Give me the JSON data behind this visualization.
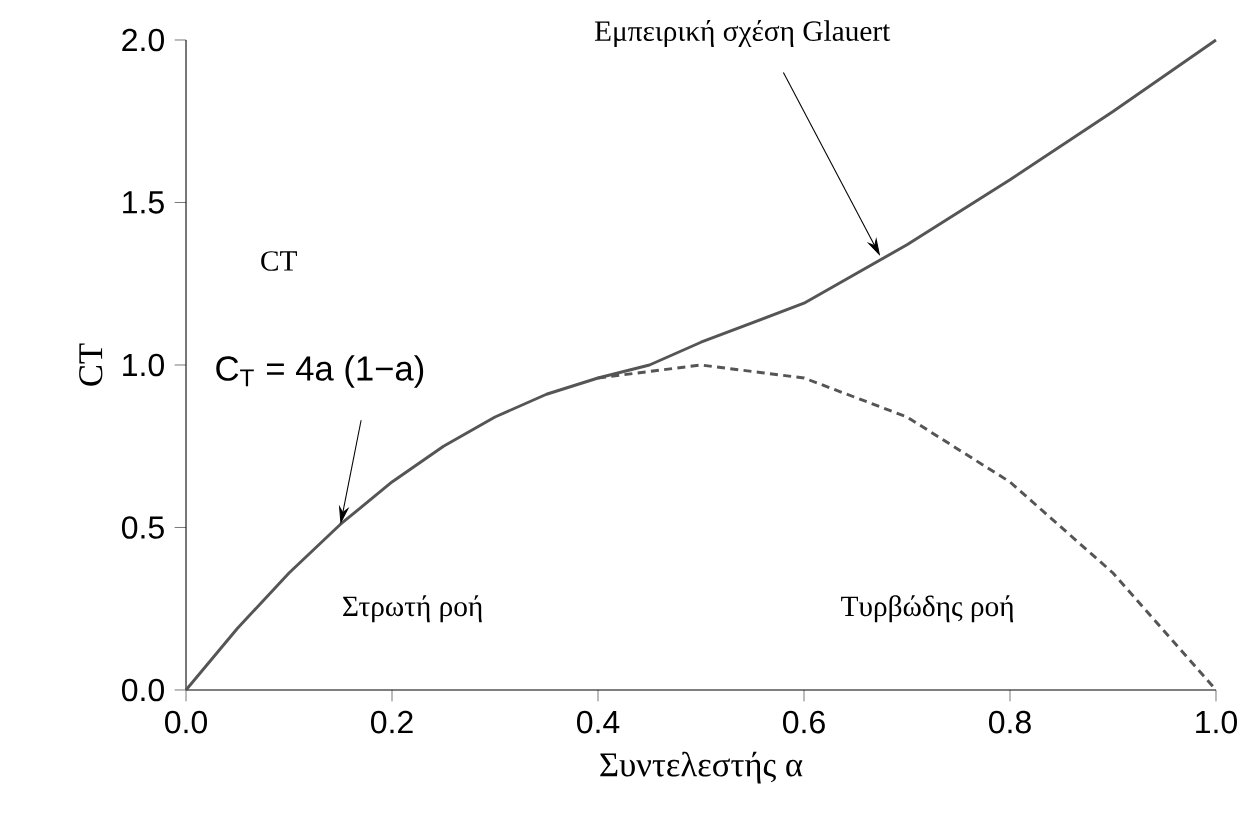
{
  "chart_data": {
    "type": "line",
    "xlabel": "Συντελεστής α",
    "ylabel": "CT",
    "series": [
      {
        "color": "#555555",
        "line_style": "solid",
        "x": [
          0,
          0.05,
          0.1,
          0.15,
          0.2,
          0.25,
          0.3,
          0.35,
          0.4,
          0.45,
          0.5,
          0.6,
          0.7,
          0.8,
          0.9,
          1.0
        ],
        "values": [
          0,
          0.19,
          0.36,
          0.51,
          0.64,
          0.75,
          0.84,
          0.91,
          0.96,
          1.0,
          1.07,
          1.19,
          1.37,
          1.57,
          1.78,
          2.0
        ]
      },
      {
        "color": "#555555",
        "line_style": "dashed",
        "x": [
          0.4,
          0.5,
          0.6,
          0.7,
          0.8,
          0.9,
          1.0
        ],
        "values": [
          0.96,
          1.0,
          0.96,
          0.84,
          0.64,
          0.36,
          0
        ]
      }
    ],
    "xlim": [
      0,
      1.0
    ],
    "ylim": [
      0,
      2.0
    ],
    "xticks": [
      {
        "value": 0,
        "label": "0.0"
      },
      {
        "value": 0.2,
        "label": "0.2"
      },
      {
        "value": 0.4,
        "label": "0.4"
      },
      {
        "value": 0.6,
        "label": "0.6"
      },
      {
        "value": 0.8,
        "label": "0.8"
      },
      {
        "value": 1.0,
        "label": "1.0"
      }
    ],
    "yticks": [
      {
        "value": 0,
        "label": "0.0"
      },
      {
        "value": 0.5,
        "label": "0.5"
      },
      {
        "value": 1.0,
        "label": "1.0"
      },
      {
        "value": 1.5,
        "label": "1.5"
      },
      {
        "value": 2.0,
        "label": "2.0"
      }
    ],
    "annotations": [
      {
        "text": "Εμπειρική σχέση Glauert",
        "x": 0.674,
        "y": 1.335
      },
      {
        "text": "C$_{T}$ = 4a (1−a)",
        "x": 0.15,
        "y": 0.51
      },
      "CT",
      "Στρωτή ροή",
      "Τυρβώδης ροή"
    ],
    "grid": false
  }
}
